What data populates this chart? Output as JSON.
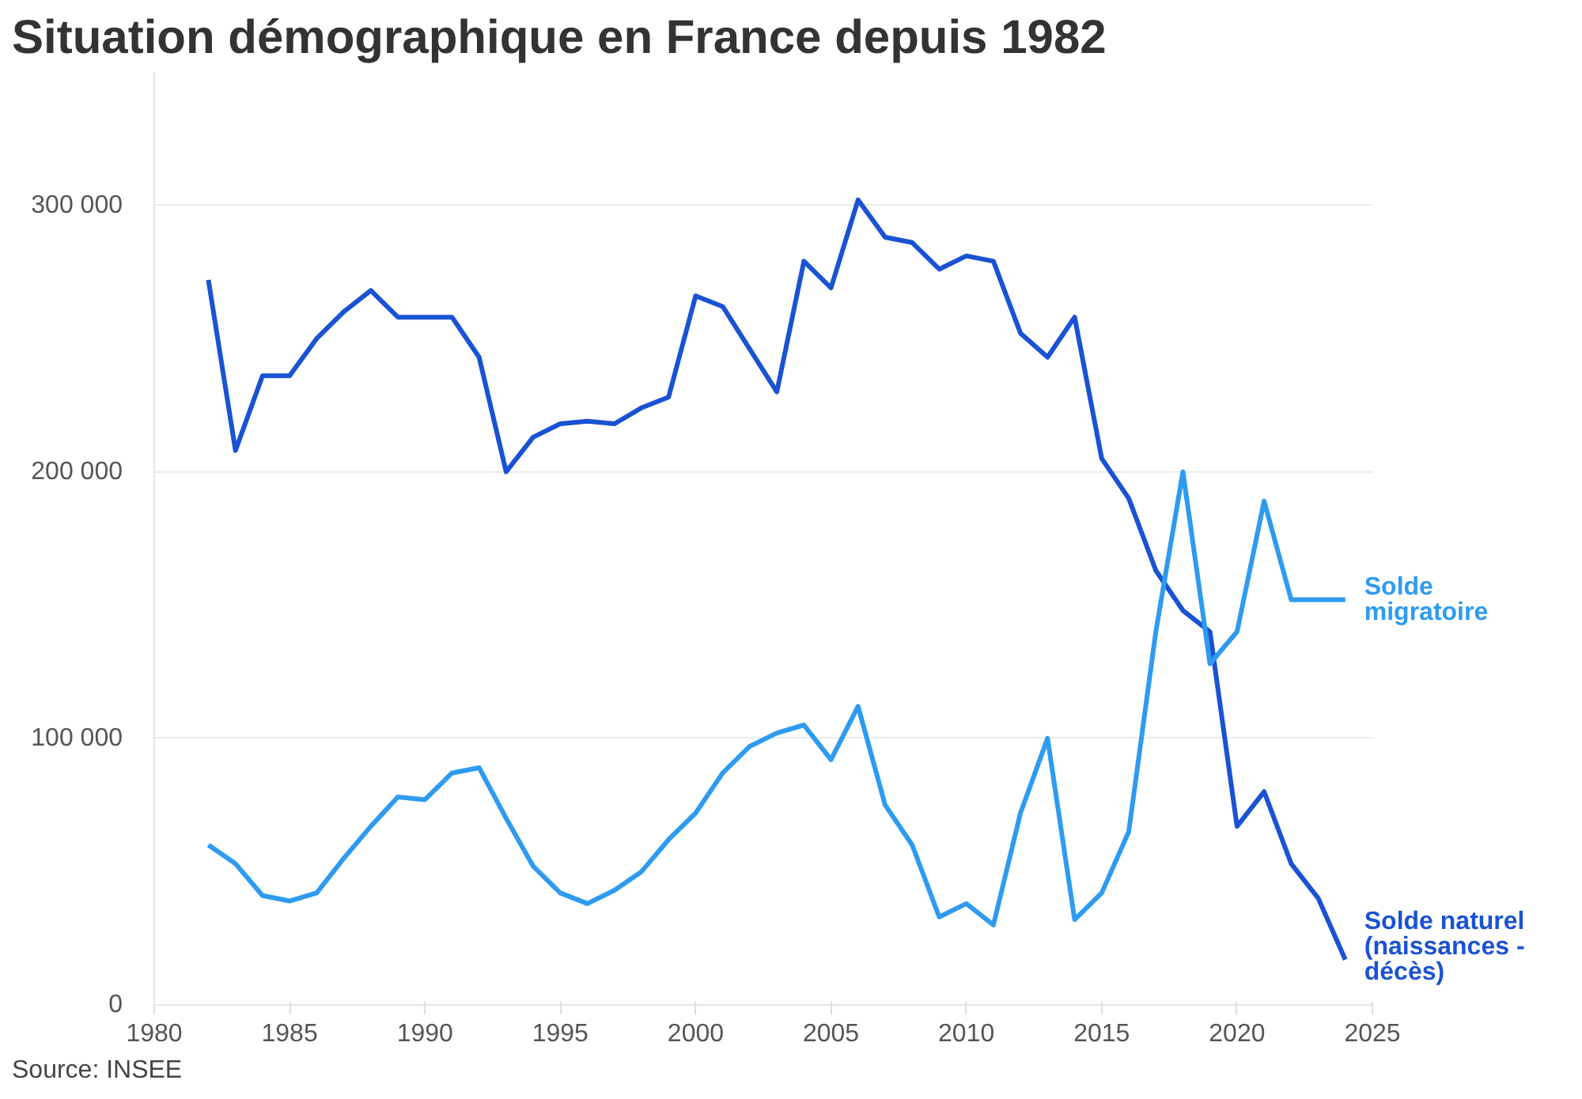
{
  "chart_data": {
    "type": "line",
    "title": "Situation démographique en France depuis 1982",
    "x": [
      1982,
      1983,
      1984,
      1985,
      1986,
      1987,
      1988,
      1989,
      1990,
      1991,
      1992,
      1993,
      1994,
      1995,
      1996,
      1997,
      1998,
      1999,
      2000,
      2001,
      2002,
      2003,
      2004,
      2005,
      2006,
      2007,
      2008,
      2009,
      2010,
      2011,
      2012,
      2013,
      2014,
      2015,
      2016,
      2017,
      2018,
      2019,
      2020,
      2021,
      2022,
      2023,
      2024
    ],
    "series": [
      {
        "name": "Solde naturel (naissances - décès)",
        "color": "#1a52d4",
        "values": [
          272000,
          208000,
          236000,
          236000,
          250000,
          260000,
          268000,
          258000,
          258000,
          258000,
          243000,
          200000,
          213000,
          218000,
          219000,
          218000,
          224000,
          228000,
          266000,
          262000,
          246000,
          230000,
          279000,
          269000,
          302000,
          288000,
          286000,
          276000,
          281000,
          279000,
          252000,
          243000,
          258000,
          205000,
          190000,
          163000,
          148000,
          140000,
          67000,
          80000,
          53000,
          40000,
          17000
        ]
      },
      {
        "name": "Solde migratoire",
        "color": "#2e9bf0",
        "values": [
          60000,
          53000,
          41000,
          39000,
          42000,
          55000,
          67000,
          78000,
          77000,
          87000,
          89000,
          70000,
          52000,
          42000,
          38000,
          43000,
          50000,
          62000,
          72000,
          87000,
          97000,
          102000,
          105000,
          92000,
          112000,
          75000,
          60000,
          33000,
          38000,
          30000,
          72000,
          100000,
          32000,
          42000,
          65000,
          140000,
          200000,
          128000,
          140000,
          189000,
          152000,
          152000,
          152000
        ]
      }
    ],
    "xlim": [
      1980,
      2025
    ],
    "xticks": [
      1980,
      1985,
      1990,
      1995,
      2000,
      2005,
      2010,
      2015,
      2020,
      2025
    ],
    "ylim": [
      0,
      350000
    ],
    "yticks": [
      {
        "value": 0,
        "label": "0"
      },
      {
        "value": 100000,
        "label": "100 000"
      },
      {
        "value": 200000,
        "label": "200 000"
      },
      {
        "value": 300000,
        "label": "300 000"
      }
    ],
    "grid": "y",
    "line_style": "solid",
    "annotations": [
      "Source: INSEE"
    ]
  }
}
